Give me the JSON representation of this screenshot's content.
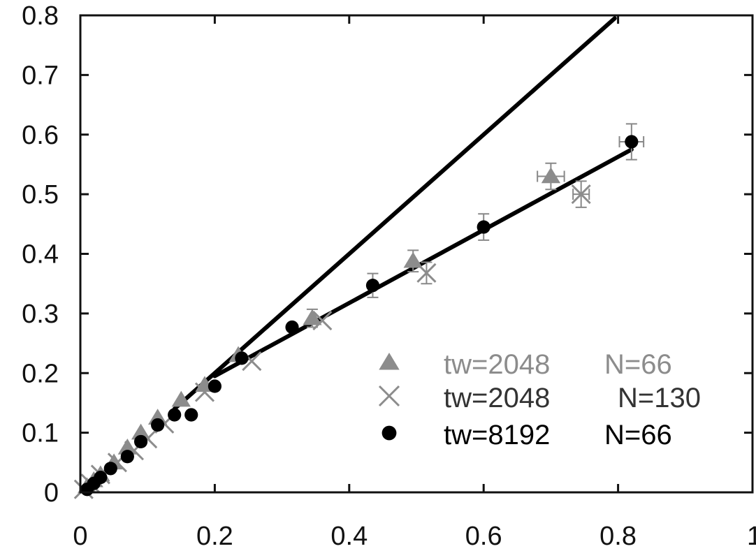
{
  "chart_data": {
    "type": "scatter",
    "title": "",
    "xlabel": "",
    "ylabel": "",
    "xlim": [
      0,
      1
    ],
    "ylim": [
      0,
      0.8
    ],
    "x_ticks": [
      0,
      0.2,
      0.4,
      0.6,
      0.8,
      1
    ],
    "x_tick_labels": [
      "0",
      "0.2",
      "0.4",
      "0.6",
      "0.8",
      "1"
    ],
    "y_ticks": [
      0,
      0.1,
      0.2,
      0.3,
      0.4,
      0.5,
      0.6,
      0.7,
      0.8
    ],
    "y_tick_labels": [
      "0",
      "0.1",
      "0.2",
      "0.3",
      "0.4",
      "0.5",
      "0.6",
      "0.7",
      "0.8"
    ],
    "grid": false,
    "legend_position": "lower-right",
    "legend": [
      {
        "marker": "triangle",
        "label": "tw=2048",
        "n_label": "N=66",
        "color": "#8c8c8c",
        "text_color": "#8c8c8c"
      },
      {
        "marker": "cross",
        "label": "tw=2048",
        "n_label": "N=130",
        "color": "#8c8c8c",
        "text_color": "#333333"
      },
      {
        "marker": "circle",
        "label": "tw=8192",
        "n_label": "N=66",
        "color": "#000000",
        "text_color": "#000000"
      }
    ],
    "series": [
      {
        "marker": "triangle",
        "color": "#8c8c8c",
        "points": [
          {
            "x": 0.01,
            "y": 0.01
          },
          {
            "x": 0.02,
            "y": 0.02
          },
          {
            "x": 0.03,
            "y": 0.03
          },
          {
            "x": 0.05,
            "y": 0.05
          },
          {
            "x": 0.07,
            "y": 0.075
          },
          {
            "x": 0.09,
            "y": 0.1
          },
          {
            "x": 0.115,
            "y": 0.125
          },
          {
            "x": 0.15,
            "y": 0.155
          },
          {
            "x": 0.185,
            "y": 0.18
          },
          {
            "x": 0.235,
            "y": 0.23
          },
          {
            "x": 0.345,
            "y": 0.292,
            "yerr": 0.015
          },
          {
            "x": 0.495,
            "y": 0.388,
            "yerr": 0.018
          },
          {
            "x": 0.7,
            "y": 0.53,
            "xerr": 0.02,
            "yerr": 0.022
          }
        ]
      },
      {
        "marker": "cross",
        "color": "#8c8c8c",
        "points": [
          {
            "x": 0.005,
            "y": 0.005
          },
          {
            "x": 0.015,
            "y": 0.015
          },
          {
            "x": 0.03,
            "y": 0.03
          },
          {
            "x": 0.055,
            "y": 0.05
          },
          {
            "x": 0.08,
            "y": 0.07
          },
          {
            "x": 0.1,
            "y": 0.09
          },
          {
            "x": 0.125,
            "y": 0.115
          },
          {
            "x": 0.185,
            "y": 0.168
          },
          {
            "x": 0.255,
            "y": 0.22
          },
          {
            "x": 0.36,
            "y": 0.288
          },
          {
            "x": 0.515,
            "y": 0.368,
            "yerr": 0.018
          },
          {
            "x": 0.745,
            "y": 0.5,
            "xerr": 0.012,
            "yerr": 0.022
          }
        ]
      },
      {
        "marker": "circle",
        "color": "#000000",
        "points": [
          {
            "x": 0.01,
            "y": 0.005
          },
          {
            "x": 0.02,
            "y": 0.015
          },
          {
            "x": 0.03,
            "y": 0.025
          },
          {
            "x": 0.045,
            "y": 0.04
          },
          {
            "x": 0.07,
            "y": 0.06
          },
          {
            "x": 0.09,
            "y": 0.085
          },
          {
            "x": 0.115,
            "y": 0.113
          },
          {
            "x": 0.14,
            "y": 0.13
          },
          {
            "x": 0.165,
            "y": 0.13
          },
          {
            "x": 0.2,
            "y": 0.178
          },
          {
            "x": 0.24,
            "y": 0.225
          },
          {
            "x": 0.315,
            "y": 0.277
          },
          {
            "x": 0.435,
            "y": 0.347,
            "yerr": 0.02
          },
          {
            "x": 0.6,
            "y": 0.445,
            "yerr": 0.022
          },
          {
            "x": 0.82,
            "y": 0.588,
            "xerr": 0.018,
            "yerr": 0.03
          }
        ]
      }
    ],
    "lines": [
      {
        "x": [
          0.14,
          0.795
        ],
        "y": [
          0.14,
          0.795
        ],
        "color": "#000000"
      },
      {
        "x": [
          0.2,
          0.82
        ],
        "y": [
          0.195,
          0.575
        ],
        "color": "#000000"
      }
    ]
  }
}
